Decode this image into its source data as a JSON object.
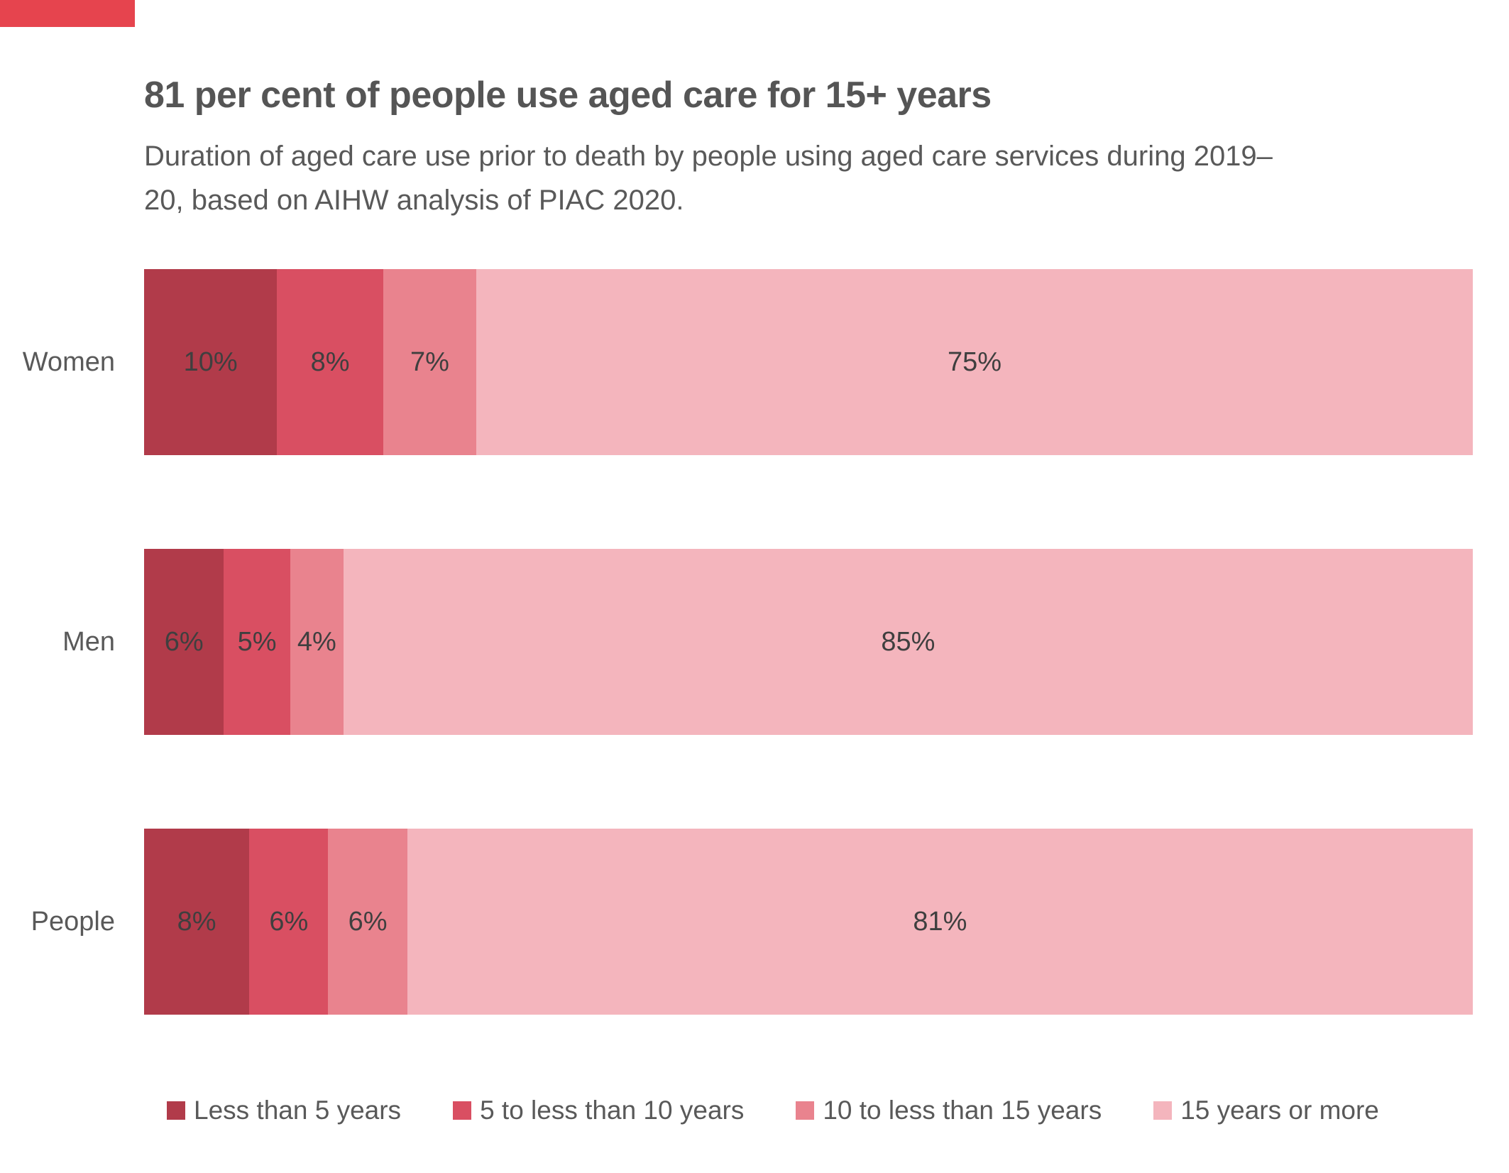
{
  "colors": {
    "corner_tab": "#E6444E",
    "title_text": "#555555",
    "body_text": "#595959",
    "data_label_text": "#3F3F3F",
    "background": "#FFFFFF"
  },
  "header": {
    "title": "81 per cent of people use aged care for 15+ years",
    "subtitle": "Duration of aged care use prior to death by people using aged care services during 2019–20, based on AIHW analysis of PIAC 2020."
  },
  "chart_data": {
    "type": "bar",
    "orientation": "horizontal",
    "stacked": true,
    "title": "81 per cent of people use aged care for 15+ years",
    "subtitle": "Duration of aged care use prior to death by people using aged care services during 2019–20, based on AIHW analysis of PIAC 2020.",
    "categories": [
      "Women",
      "Men",
      "People"
    ],
    "series": [
      {
        "name": "Less than 5 years",
        "color": "#B13B4A",
        "values": [
          10,
          6,
          8
        ]
      },
      {
        "name": "5 to less than 10 years",
        "color": "#D94F62",
        "values": [
          8,
          5,
          6
        ]
      },
      {
        "name": "10 to less than 15 years",
        "color": "#E9838E",
        "values": [
          7,
          4,
          6
        ]
      },
      {
        "name": "15 years or more",
        "color": "#F4B5BD",
        "values": [
          75,
          85,
          81
        ]
      }
    ],
    "value_suffix": "%",
    "data_labels": true,
    "xlim": [
      0,
      100
    ],
    "grid": false,
    "legend_position": "bottom"
  }
}
